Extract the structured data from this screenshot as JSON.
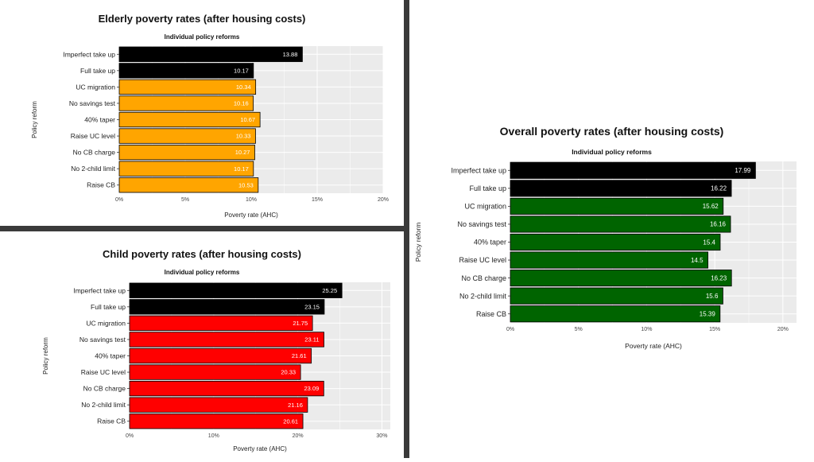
{
  "colors": {
    "divider": "#3a3a3a",
    "panel_bg": "#ebebeb",
    "grid": "#ffffff",
    "baseline_bar": "#000000"
  },
  "chart_data": [
    {
      "id": "elderly",
      "type": "bar",
      "orientation": "horizontal",
      "title": "Elderly poverty rates (after housing costs)",
      "subtitle": "Individual policy reforms",
      "xlabel": "Poverty rate (AHC)",
      "ylabel": "Policy reform",
      "categories": [
        "Imperfect take up",
        "Full take up",
        "UC migration",
        "No savings test",
        "40% taper",
        "Raise UC level",
        "No CB charge",
        "No 2-child limit",
        "Raise CB"
      ],
      "values": [
        13.88,
        10.17,
        10.34,
        10.16,
        10.67,
        10.33,
        10.27,
        10.17,
        10.53
      ],
      "value_labels": [
        "13.88",
        "10.17",
        "10.34",
        "10.16",
        "10.67",
        "10.33",
        "10.27",
        "10.17",
        "10.53"
      ],
      "xlim": [
        0,
        20
      ],
      "xticks": [
        0,
        5,
        10,
        15,
        20
      ],
      "xtick_labels": [
        "0%",
        "5%",
        "10%",
        "15%",
        "20%"
      ],
      "baseline_color": "#000000",
      "reform_color": "#ffa500"
    },
    {
      "id": "child",
      "type": "bar",
      "orientation": "horizontal",
      "title": "Child poverty rates (after housing costs)",
      "subtitle": "Individual policy reforms",
      "xlabel": "Poverty rate (AHC)",
      "ylabel": "Policy reform",
      "categories": [
        "Imperfect take up",
        "Full take up",
        "UC migration",
        "No savings test",
        "40% taper",
        "Raise UC level",
        "No CB charge",
        "No 2-child limit",
        "Raise CB"
      ],
      "values": [
        25.25,
        23.15,
        21.75,
        23.11,
        21.61,
        20.33,
        23.09,
        21.16,
        20.61
      ],
      "value_labels": [
        "25.25",
        "23.15",
        "21.75",
        "23.11",
        "21.61",
        "20.33",
        "23.09",
        "21.16",
        "20.61"
      ],
      "xlim": [
        0,
        31
      ],
      "xticks": [
        0,
        10,
        20,
        30
      ],
      "xtick_labels": [
        "0%",
        "10%",
        "20%",
        "30%"
      ],
      "baseline_color": "#000000",
      "reform_color": "#ff0000"
    },
    {
      "id": "overall",
      "type": "bar",
      "orientation": "horizontal",
      "title": "Overall poverty rates (after housing costs)",
      "subtitle": "Individual policy reforms",
      "xlabel": "Poverty rate (AHC)",
      "ylabel": "Policy reform",
      "categories": [
        "Imperfect take up",
        "Full take up",
        "UC migration",
        "No savings test",
        "40% taper",
        "Raise UC level",
        "No CB charge",
        "No 2-child limit",
        "Raise CB"
      ],
      "values": [
        17.99,
        16.22,
        15.62,
        16.16,
        15.4,
        14.5,
        16.23,
        15.6,
        15.39
      ],
      "value_labels": [
        "17.99",
        "16.22",
        "15.62",
        "16.16",
        "15.4",
        "14.5",
        "16.23",
        "15.6",
        "15.39"
      ],
      "xlim": [
        0,
        21
      ],
      "xticks": [
        0,
        5,
        10,
        15,
        20
      ],
      "xtick_labels": [
        "0%",
        "5%",
        "10%",
        "15%",
        "20%"
      ],
      "baseline_color": "#000000",
      "reform_color": "#006400"
    }
  ]
}
